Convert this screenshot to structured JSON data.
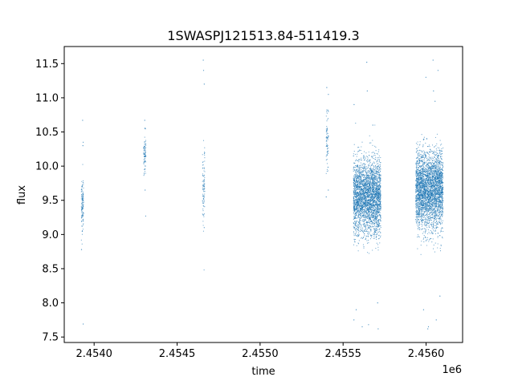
{
  "chart_data": {
    "type": "scatter",
    "title": "1SWASPJ121513.84-511419.3",
    "xlabel": "time",
    "ylabel": "flux",
    "x_offset_label": "1e6",
    "x_scale_factor": 1000000,
    "xlim": [
      2453820,
      2456220
    ],
    "ylim": [
      7.42,
      11.75
    ],
    "x_ticks": [
      2454000,
      2454500,
      2455000,
      2455500,
      2456000
    ],
    "x_tick_labels": [
      "2.4540",
      "2.4545",
      "2.4550",
      "2.4555",
      "2.4560"
    ],
    "y_ticks": [
      7.5,
      8.0,
      8.5,
      9.0,
      9.5,
      10.0,
      10.5,
      11.0,
      11.5
    ],
    "y_tick_labels": [
      "7.5",
      "8.0",
      "8.5",
      "9.0",
      "9.5",
      "10.0",
      "10.5",
      "11.0",
      "11.5"
    ],
    "grid": false,
    "marker_color": "#1f77b4",
    "series": [
      {
        "clusters": [
          {
            "time": 2453930,
            "flux_center": 9.45,
            "flux_spread": 0.35,
            "count": 120,
            "outliers": [
              10.67,
              10.35,
              10.3,
              8.78,
              7.69
            ]
          },
          {
            "time": 2454305,
            "flux_center": 10.15,
            "flux_spread": 0.3,
            "count": 80,
            "outliers": [
              10.67,
              10.55,
              9.65,
              9.27
            ]
          },
          {
            "time": 2454660,
            "flux_center": 9.75,
            "flux_spread": 0.55,
            "count": 90,
            "outliers": [
              11.55,
              11.4,
              11.2,
              9.1
            ]
          },
          {
            "time": 2455405,
            "flux_center": 10.35,
            "flux_spread": 0.35,
            "count": 70,
            "outliers": [
              11.15,
              11.05,
              9.55,
              9.65
            ]
          },
          {
            "time": 2455645,
            "time_width": 165,
            "flux_center": 9.55,
            "flux_spread": 0.5,
            "count": 3000,
            "outliers": [
              11.52,
              11.1,
              10.9,
              10.6,
              8.0,
              7.9,
              7.75,
              7.68,
              7.65,
              7.62
            ]
          },
          {
            "time": 2456020,
            "time_width": 165,
            "flux_center": 9.65,
            "flux_spread": 0.5,
            "count": 3200,
            "outliers": [
              11.55,
              11.4,
              11.3,
              11.1,
              10.95,
              8.1,
              7.9,
              7.75,
              7.65,
              7.62
            ]
          }
        ]
      }
    ]
  }
}
